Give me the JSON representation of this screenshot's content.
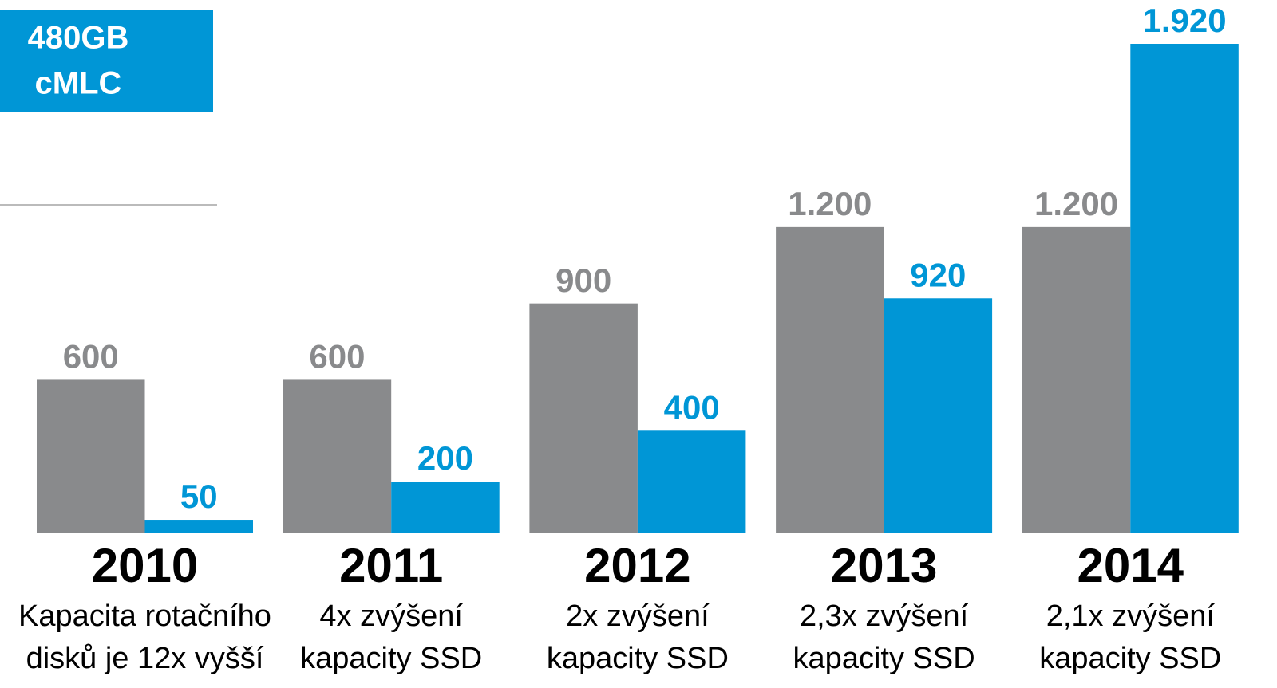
{
  "chart_data": {
    "type": "bar",
    "annotation": [
      "480GB",
      "cMLC"
    ],
    "categories": [
      "2010",
      "2011",
      "2012",
      "2013",
      "2014"
    ],
    "notes": [
      [
        "Kapacita rotačního",
        "disků je 12x vyšší"
      ],
      [
        "4x zvýšení",
        "kapacity SSD"
      ],
      [
        "2x zvýšení",
        "kapacity SSD"
      ],
      [
        "2,3x zvýšení",
        "kapacity SSD"
      ],
      [
        "2,1x zvýšení",
        "kapacity SSD"
      ]
    ],
    "series": [
      {
        "color": "#898a8c",
        "values": [
          600,
          600,
          900,
          1200,
          1200
        ],
        "value_labels": [
          "600",
          "600",
          "900",
          "1.200",
          "1.200"
        ]
      },
      {
        "color": "#0096d6",
        "values": [
          50,
          200,
          400,
          920,
          1920
        ],
        "value_labels": [
          "50",
          "200",
          "400",
          "920",
          "1.920"
        ]
      }
    ]
  }
}
